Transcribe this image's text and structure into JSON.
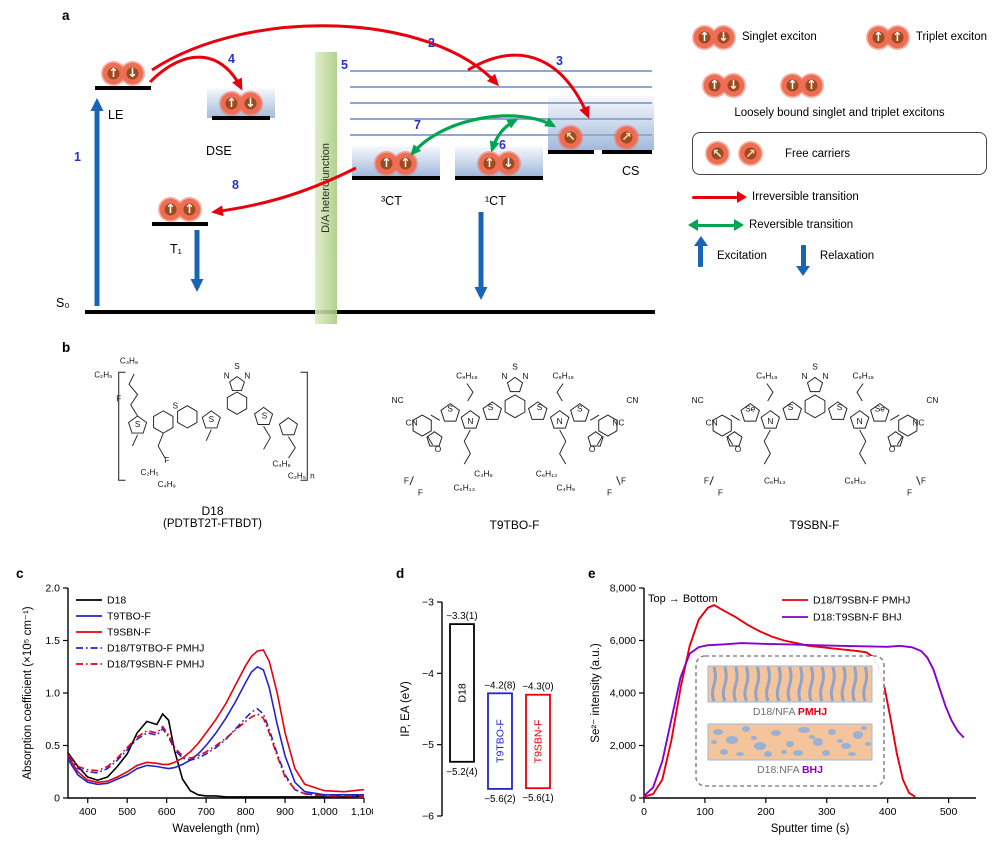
{
  "figure": {
    "panel_labels": {
      "a": "a",
      "b": "b",
      "c": "c",
      "d": "d",
      "e": "e"
    }
  },
  "icons": {
    "spin_up": "↑",
    "spin_down": "↓",
    "carrier_up_left": "↖",
    "carrier_up_right": "↗"
  },
  "panel_a": {
    "state_labels": {
      "le": "LE",
      "dse": "DSE",
      "t1": "T₁",
      "ct3": "³CT",
      "ct1": "¹CT",
      "cs": "CS",
      "s0": "S₀"
    },
    "transition_numbers": {
      "n1": "1",
      "n2": "2",
      "n3": "3",
      "n4": "4",
      "n5": "5",
      "n6": "6",
      "n7": "7",
      "n8": "8"
    },
    "heterojunction_label": "D/A heterojunction",
    "legend": {
      "singlet": "Singlet exciton",
      "triplet": "Triplet exciton",
      "loosely_bound": "Loosely bound singlet and triplet excitons",
      "free_carriers": "Free carriers",
      "irreversible": "Irreversible transition",
      "reversible": "Reversible transition",
      "excitation": "Excitation",
      "relaxation": "Relaxation"
    }
  },
  "panel_b": {
    "molecules": [
      {
        "name": "D18",
        "alt_name": "(PDTBT2T-FTBDT)",
        "atom_labels": [
          "C₄H₉",
          "C₂H₅",
          "F",
          "S",
          "S",
          "N",
          "S",
          "N",
          "S",
          "S",
          "F",
          "C₂H₅",
          "C₄H₉",
          "C₄H₉",
          "C₂H₅",
          "n"
        ]
      },
      {
        "name": "T9TBO-F",
        "atom_labels": [
          "C₉H₁₉",
          "C₉H₁₉",
          "N",
          "S",
          "N",
          "S",
          "S",
          "N",
          "N",
          "S",
          "S",
          "NC",
          "CN",
          "O",
          "F",
          "F",
          "C₄H₉",
          "C₆H₁₃",
          "C₆H₁₃",
          "C₄H₉",
          "O",
          "CN",
          "NC",
          "F",
          "F"
        ]
      },
      {
        "name": "T9SBN-F",
        "atom_labels": [
          "C₉H₁₉",
          "C₉H₁₉",
          "N",
          "S",
          "N",
          "S",
          "S",
          "N",
          "N",
          "Se",
          "Se",
          "NC",
          "CN",
          "O",
          "F",
          "F",
          "C₆H₁₃",
          "C₆H₁₃",
          "O",
          "CN",
          "NC",
          "F",
          "F"
        ]
      }
    ]
  },
  "chart_data": [
    {
      "panel": "c",
      "type": "line",
      "xlabel": "Wavelength (nm)",
      "ylabel": "Absorption coefficient (×10⁵ cm⁻¹)",
      "xlim": [
        350,
        1100
      ],
      "ylim": [
        0,
        2.0
      ],
      "xticks": [
        400,
        500,
        600,
        700,
        800,
        900,
        1000,
        1100
      ],
      "xtick_labels": [
        "400",
        "500",
        "600",
        "700",
        "800",
        "900",
        "1,000",
        "1,100"
      ],
      "yticks": [
        0,
        0.5,
        1.0,
        1.5,
        2.0
      ],
      "ytick_labels": [
        "0",
        "0.5",
        "1.0",
        "1.5",
        "2.0"
      ],
      "legend_pos": "tl",
      "x": [
        350,
        375,
        400,
        425,
        450,
        475,
        500,
        525,
        550,
        575,
        590,
        605,
        620,
        640,
        660,
        680,
        700,
        725,
        750,
        775,
        800,
        815,
        830,
        845,
        860,
        880,
        900,
        925,
        950,
        1000,
        1050,
        1100
      ],
      "series": [
        {
          "name": "D18",
          "color": "#000000",
          "style": "solid",
          "y": [
            0.43,
            0.3,
            0.2,
            0.17,
            0.2,
            0.3,
            0.42,
            0.62,
            0.73,
            0.7,
            0.8,
            0.74,
            0.45,
            0.18,
            0.07,
            0.03,
            0.02,
            0.02,
            0.01,
            0.01,
            0.01,
            0.01,
            0.01,
            0.01,
            0.01,
            0.01,
            0.01,
            0.01,
            0.01,
            0.01,
            0.01,
            0.02
          ]
        },
        {
          "name": "T9TBO-F",
          "color": "#2323cc",
          "style": "solid",
          "y": [
            0.37,
            0.22,
            0.15,
            0.13,
            0.14,
            0.18,
            0.22,
            0.28,
            0.31,
            0.3,
            0.29,
            0.28,
            0.29,
            0.32,
            0.36,
            0.42,
            0.5,
            0.62,
            0.76,
            0.92,
            1.1,
            1.2,
            1.25,
            1.22,
            1.05,
            0.7,
            0.4,
            0.15,
            0.06,
            0.03,
            0.03,
            0.03
          ]
        },
        {
          "name": "T9SBN-F",
          "color": "#e8000d",
          "style": "solid",
          "y": [
            0.4,
            0.25,
            0.17,
            0.15,
            0.16,
            0.2,
            0.25,
            0.31,
            0.34,
            0.33,
            0.32,
            0.32,
            0.34,
            0.38,
            0.44,
            0.52,
            0.62,
            0.75,
            0.9,
            1.08,
            1.26,
            1.35,
            1.4,
            1.41,
            1.3,
            1.0,
            0.62,
            0.28,
            0.13,
            0.07,
            0.06,
            0.08
          ]
        },
        {
          "name": "D18/T9TBO-F PMHJ",
          "color": "#2323cc",
          "style": "dashdot",
          "y": [
            0.4,
            0.28,
            0.25,
            0.24,
            0.28,
            0.36,
            0.46,
            0.56,
            0.62,
            0.6,
            0.66,
            0.58,
            0.46,
            0.38,
            0.36,
            0.38,
            0.42,
            0.48,
            0.56,
            0.66,
            0.76,
            0.82,
            0.85,
            0.8,
            0.65,
            0.42,
            0.22,
            0.08,
            0.04,
            0.02,
            0.02,
            0.02
          ]
        },
        {
          "name": "D18/T9SBN-F PMHJ",
          "color": "#e8000d",
          "style": "dashdot",
          "y": [
            0.41,
            0.3,
            0.27,
            0.26,
            0.3,
            0.38,
            0.48,
            0.58,
            0.64,
            0.62,
            0.68,
            0.6,
            0.48,
            0.4,
            0.38,
            0.4,
            0.44,
            0.5,
            0.57,
            0.65,
            0.73,
            0.77,
            0.8,
            0.76,
            0.62,
            0.4,
            0.2,
            0.08,
            0.04,
            0.02,
            0.02,
            0.02
          ]
        }
      ]
    },
    {
      "panel": "d",
      "type": "energy-bars",
      "ylabel": "IP, EA (eV)",
      "ylim": [
        -6,
        -3
      ],
      "yticks": [
        -6,
        -5,
        -4,
        -3
      ],
      "ytick_labels": [
        "−6",
        "−5",
        "−4",
        "−3"
      ],
      "bars": [
        {
          "name": "D18",
          "color": "#000000",
          "ea": -3.31,
          "ip": -5.24,
          "ea_label": "−3.3(1)",
          "ip_label": "−5.2(4)"
        },
        {
          "name": "T9TBO-F",
          "color": "#2323cc",
          "ea": -4.28,
          "ip": -5.62,
          "ea_label": "−4.2(8)",
          "ip_label": "−5.6(2)"
        },
        {
          "name": "T9SBN-F",
          "color": "#e8000d",
          "ea": -4.3,
          "ip": -5.61,
          "ea_label": "−4.3(0)",
          "ip_label": "−5.6(1)"
        }
      ]
    },
    {
      "panel": "e",
      "type": "line",
      "xlabel": "Sputter time (s)",
      "ylabel": "Se²⁻ intensity (a.u.)",
      "xlim": [
        0,
        545
      ],
      "ylim": [
        0,
        8000
      ],
      "xticks": [
        0,
        100,
        200,
        300,
        400,
        500
      ],
      "xtick_labels": [
        "0",
        "100",
        "200",
        "300",
        "400",
        "500"
      ],
      "yticks": [
        0,
        2000,
        4000,
        6000,
        8000
      ],
      "ytick_labels": [
        "0",
        "2,000",
        "4,000",
        "6,000",
        "8,000"
      ],
      "legend_pos": "tr",
      "annotation": "Top → Bottom",
      "series": [
        {
          "name": "D18/T9SBN-F PMHJ",
          "color": "#e8000d",
          "style": "solid",
          "points": [
            [
              0,
              50
            ],
            [
              15,
              150
            ],
            [
              30,
              700
            ],
            [
              45,
              2200
            ],
            [
              60,
              4200
            ],
            [
              75,
              5800
            ],
            [
              90,
              6800
            ],
            [
              105,
              7250
            ],
            [
              115,
              7350
            ],
            [
              130,
              7150
            ],
            [
              150,
              6900
            ],
            [
              170,
              6600
            ],
            [
              190,
              6350
            ],
            [
              210,
              6150
            ],
            [
              230,
              6000
            ],
            [
              250,
              5900
            ],
            [
              270,
              5800
            ],
            [
              290,
              5750
            ],
            [
              310,
              5700
            ],
            [
              330,
              5650
            ],
            [
              350,
              5600
            ],
            [
              365,
              5550
            ],
            [
              375,
              5400
            ],
            [
              385,
              5000
            ],
            [
              395,
              4200
            ],
            [
              405,
              3000
            ],
            [
              415,
              1700
            ],
            [
              425,
              700
            ],
            [
              435,
              200
            ],
            [
              445,
              50
            ]
          ]
        },
        {
          "name": "D18:T9SBN-F BHJ",
          "color": "#8800cc",
          "style": "solid",
          "points": [
            [
              0,
              80
            ],
            [
              15,
              400
            ],
            [
              30,
              1400
            ],
            [
              45,
              3000
            ],
            [
              60,
              4600
            ],
            [
              75,
              5500
            ],
            [
              90,
              5750
            ],
            [
              105,
              5820
            ],
            [
              130,
              5850
            ],
            [
              160,
              5900
            ],
            [
              200,
              5870
            ],
            [
              240,
              5850
            ],
            [
              280,
              5820
            ],
            [
              320,
              5800
            ],
            [
              360,
              5780
            ],
            [
              400,
              5760
            ],
            [
              420,
              5800
            ],
            [
              440,
              5740
            ],
            [
              455,
              5600
            ],
            [
              465,
              5350
            ],
            [
              475,
              4900
            ],
            [
              485,
              4200
            ],
            [
              495,
              3500
            ],
            [
              505,
              2950
            ],
            [
              515,
              2550
            ],
            [
              525,
              2300
            ]
          ]
        }
      ],
      "inset": {
        "rows": [
          {
            "prefix": "D18/NFA ",
            "tag": "PMHJ",
            "tag_color": "#e8000d",
            "pattern": "columns"
          },
          {
            "prefix": "D18:NFA ",
            "tag": "BHJ",
            "tag_color": "#8800cc",
            "pattern": "blobs"
          }
        ]
      }
    }
  ]
}
